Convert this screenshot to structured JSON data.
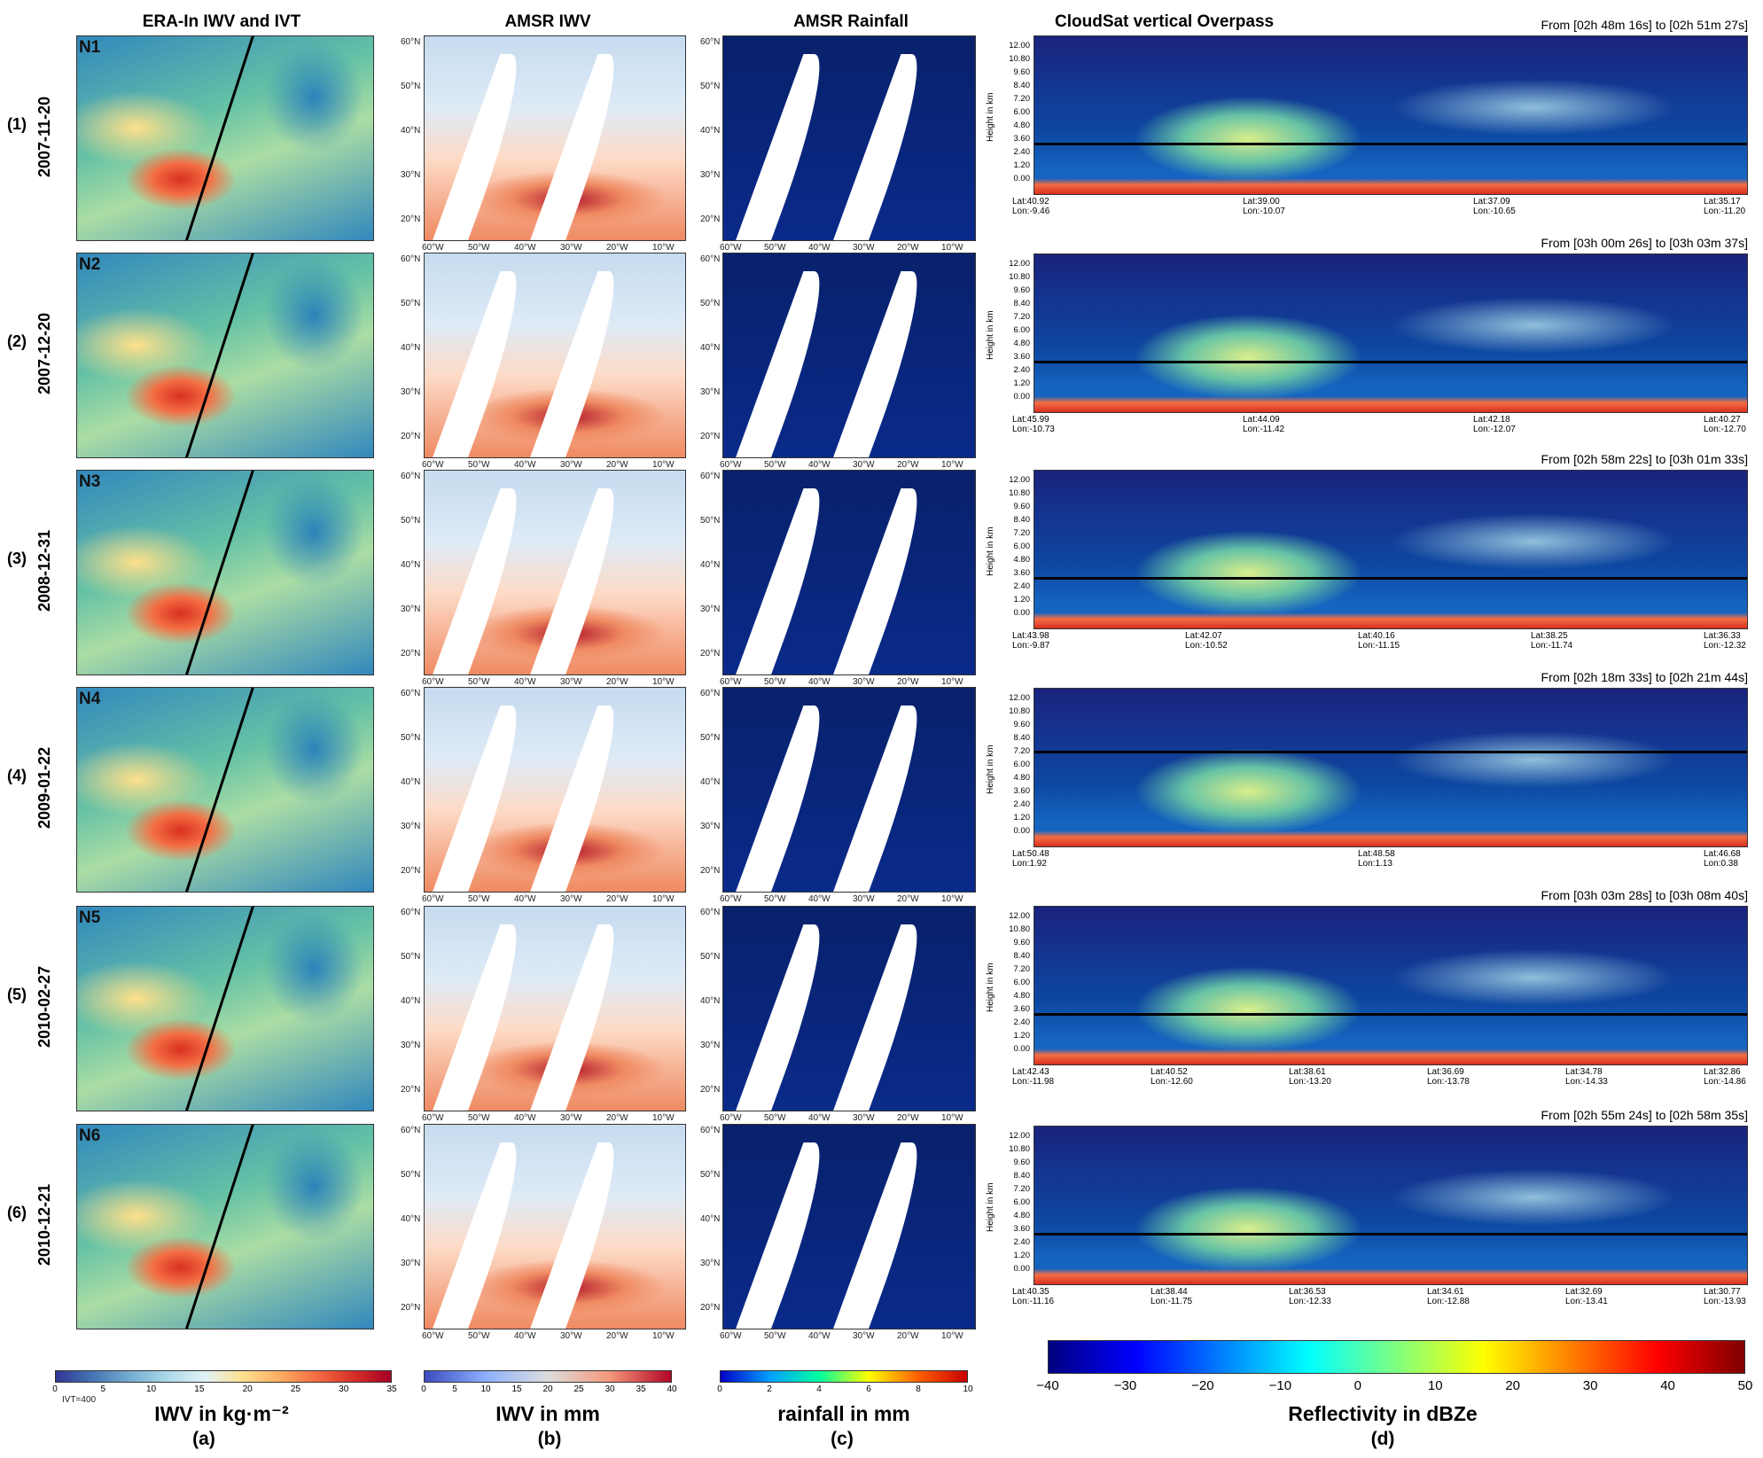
{
  "titles": {
    "era": "ERA-In IWV and IVT",
    "amsr_iwv": "AMSR IWV",
    "amsr_rain": "AMSR Rainfall",
    "cloudsat": "CloudSat vertical Overpass"
  },
  "rows": [
    {
      "num": "(1)",
      "date": "2007-11-20",
      "label": "N1",
      "time": "From [02h 48m 16s] to [02h 51m 27s]",
      "latlon": [
        [
          "Lat:40.92",
          "Lon:-9.46"
        ],
        [
          "Lat:39.00",
          "Lon:-10.07"
        ],
        [
          "Lat:37.09",
          "Lon:-10.65"
        ],
        [
          "Lat:35.17",
          "Lon:-11.20"
        ]
      ]
    },
    {
      "num": "(2)",
      "date": "2007-12-20",
      "label": "N2",
      "time": "From [03h 00m 26s] to [03h 03m 37s]",
      "latlon": [
        [
          "Lat:45.99",
          "Lon:-10.73"
        ],
        [
          "Lat:44.09",
          "Lon:-11.42"
        ],
        [
          "Lat:42.18",
          "Lon:-12.07"
        ],
        [
          "Lat:40.27",
          "Lon:-12.70"
        ]
      ]
    },
    {
      "num": "(3)",
      "date": "2008-12-31",
      "label": "N3",
      "time": "From [02h 58m 22s] to [03h 01m 33s]",
      "latlon": [
        [
          "Lat:43.98",
          "Lon:-9.87"
        ],
        [
          "Lat:42.07",
          "Lon:-10.52"
        ],
        [
          "Lat:40.16",
          "Lon:-11.15"
        ],
        [
          "Lat:38.25",
          "Lon:-11.74"
        ],
        [
          "Lat:36.33",
          "Lon:-12.32"
        ]
      ]
    },
    {
      "num": "(4)",
      "date": "2009-01-22",
      "label": "N4",
      "time": "From [02h 18m 33s] to [02h 21m 44s]",
      "latlon": [
        [
          "Lat:50.48",
          "Lon:1.92"
        ],
        [
          "Lat:48.58",
          "Lon:1.13"
        ],
        [
          "Lat:46.68",
          "Lon:0.38"
        ]
      ]
    },
    {
      "num": "(5)",
      "date": "2010-02-27",
      "label": "N5",
      "time": "From [03h 03m 28s] to [03h 08m 40s]",
      "latlon": [
        [
          "Lat:42.43",
          "Lon:-11.98"
        ],
        [
          "Lat:40.52",
          "Lon:-12.60"
        ],
        [
          "Lat:38.61",
          "Lon:-13.20"
        ],
        [
          "Lat:36.69",
          "Lon:-13.78"
        ],
        [
          "Lat:34.78",
          "Lon:-14.33"
        ],
        [
          "Lat:32.86",
          "Lon:-14.86"
        ]
      ]
    },
    {
      "num": "(6)",
      "date": "2010-12-21",
      "label": "N6",
      "time": "From [02h 55m 24s] to [02h 58m 35s]",
      "latlon": [
        [
          "Lat:40.35",
          "Lon:-11.16"
        ],
        [
          "Lat:38.44",
          "Lon:-11.75"
        ],
        [
          "Lat:36.53",
          "Lon:-12.33"
        ],
        [
          "Lat:34.61",
          "Lon:-12.88"
        ],
        [
          "Lat:32.69",
          "Lon:-13.41"
        ],
        [
          "Lat:30.77",
          "Lon:-13.93"
        ]
      ]
    }
  ],
  "map_axes": {
    "lat_ticks": [
      "60°N",
      "50°N",
      "40°N",
      "30°N",
      "20°N"
    ],
    "lon_ticks": [
      "60°W",
      "50°W",
      "40°W",
      "30°W",
      "20°W",
      "10°W"
    ]
  },
  "profile_axis": {
    "ylabel": "Height in km",
    "ticks": [
      "12.00",
      "10.80",
      "9.60",
      "8.40",
      "7.20",
      "6.00",
      "4.80",
      "3.60",
      "2.40",
      "1.20",
      "0.00"
    ]
  },
  "colorbars": {
    "a_ticks": [
      "0",
      "5",
      "10",
      "15",
      "20",
      "25",
      "30",
      "35"
    ],
    "a_ivt_note": "IVT=400",
    "b_ticks": [
      "0",
      "5",
      "10",
      "15",
      "20",
      "25",
      "30",
      "35",
      "40"
    ],
    "c_ticks": [
      "0",
      "2",
      "4",
      "6",
      "8",
      "10"
    ],
    "d_ticks": [
      "−40",
      "−30",
      "−20",
      "−10",
      "0",
      "10",
      "20",
      "30",
      "40",
      "50"
    ]
  },
  "bottom_labels": {
    "a": "IWV in  kg·m⁻²",
    "a_letter": "(a)",
    "b": "IWV in mm",
    "b_letter": "(b)",
    "c": "rainfall in mm",
    "c_letter": "(c)",
    "d": "Reflectivity in dBZe",
    "d_letter": "(d)"
  },
  "colors": {
    "background": "#ffffff",
    "freezing_line": "#000000"
  }
}
